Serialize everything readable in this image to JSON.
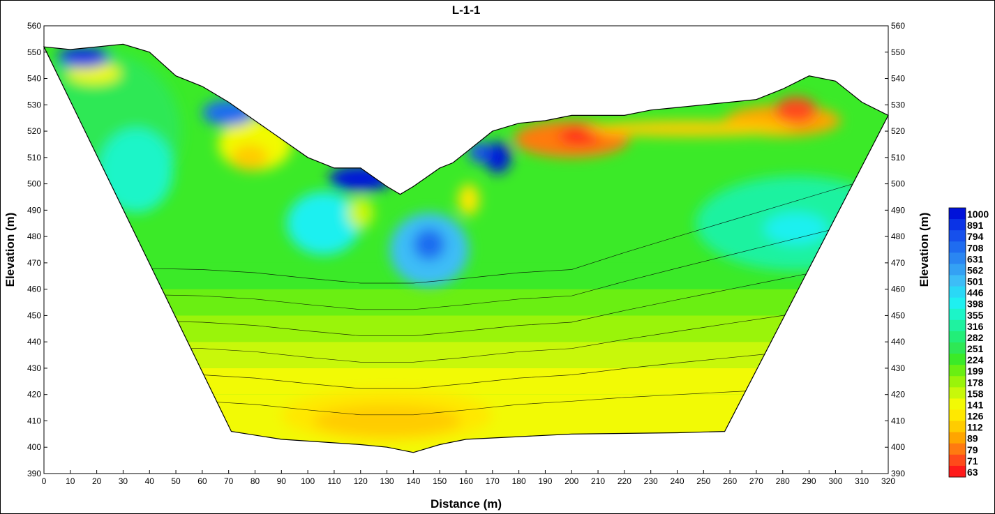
{
  "chart_data": {
    "type": "heatmap",
    "subtype": "contour cross-section",
    "title": "L-1-1",
    "xlabel": "Distance (m)",
    "ylabel": "Elevation (m)",
    "ylabel_right": "Elevation (m)",
    "xlim": [
      0,
      320
    ],
    "ylim": [
      390,
      560
    ],
    "x_ticks": [
      0,
      10,
      20,
      30,
      40,
      50,
      60,
      70,
      80,
      90,
      100,
      110,
      120,
      130,
      140,
      150,
      160,
      170,
      180,
      190,
      200,
      210,
      220,
      230,
      240,
      250,
      260,
      270,
      280,
      290,
      300,
      310,
      320
    ],
    "y_ticks": [
      560,
      550,
      540,
      530,
      520,
      510,
      500,
      490,
      480,
      470,
      460,
      450,
      440,
      430,
      420,
      410,
      400,
      390
    ],
    "grid": false,
    "colorbar": {
      "position": "right",
      "levels": [
        1000,
        891,
        794,
        708,
        631,
        562,
        501,
        446,
        398,
        355,
        316,
        282,
        251,
        224,
        199,
        178,
        158,
        141,
        126,
        112,
        89,
        79,
        71,
        63
      ],
      "colors": [
        "#0012d9",
        "#0a33e6",
        "#1650ec",
        "#1f6cf0",
        "#2a86f2",
        "#34a1f4",
        "#3dbdf7",
        "#2ad8f6",
        "#1ff0f0",
        "#1cf5c8",
        "#1ff2a0",
        "#22ee78",
        "#2ee855",
        "#3bea28",
        "#6aef12",
        "#9af40a",
        "#c8f80a",
        "#f2fa05",
        "#ffe800",
        "#ffcc00",
        "#ffa500",
        "#ff7a10",
        "#ff4a1a",
        "#ff1a1a"
      ]
    },
    "section_outline": {
      "x": [
        0,
        10,
        20,
        30,
        40,
        50,
        60,
        70,
        80,
        90,
        100,
        110,
        120,
        130,
        135,
        140,
        150,
        155,
        160,
        170,
        180,
        190,
        200,
        210,
        220,
        230,
        240,
        250,
        260,
        270,
        280,
        290,
        300,
        310,
        320,
        258,
        240,
        200,
        180,
        160,
        150,
        140,
        130,
        120,
        90,
        71
      ],
      "y": [
        552,
        551,
        552,
        553,
        550,
        541,
        537,
        531,
        524,
        517,
        510,
        506,
        506,
        499,
        496,
        499,
        506,
        508,
        512,
        520,
        523,
        524,
        526,
        526,
        526,
        528,
        529,
        530,
        531,
        532,
        536,
        541,
        539,
        531,
        526,
        406,
        405.5,
        405,
        404,
        403,
        401,
        398,
        400,
        401,
        403,
        406
      ]
    }
  }
}
